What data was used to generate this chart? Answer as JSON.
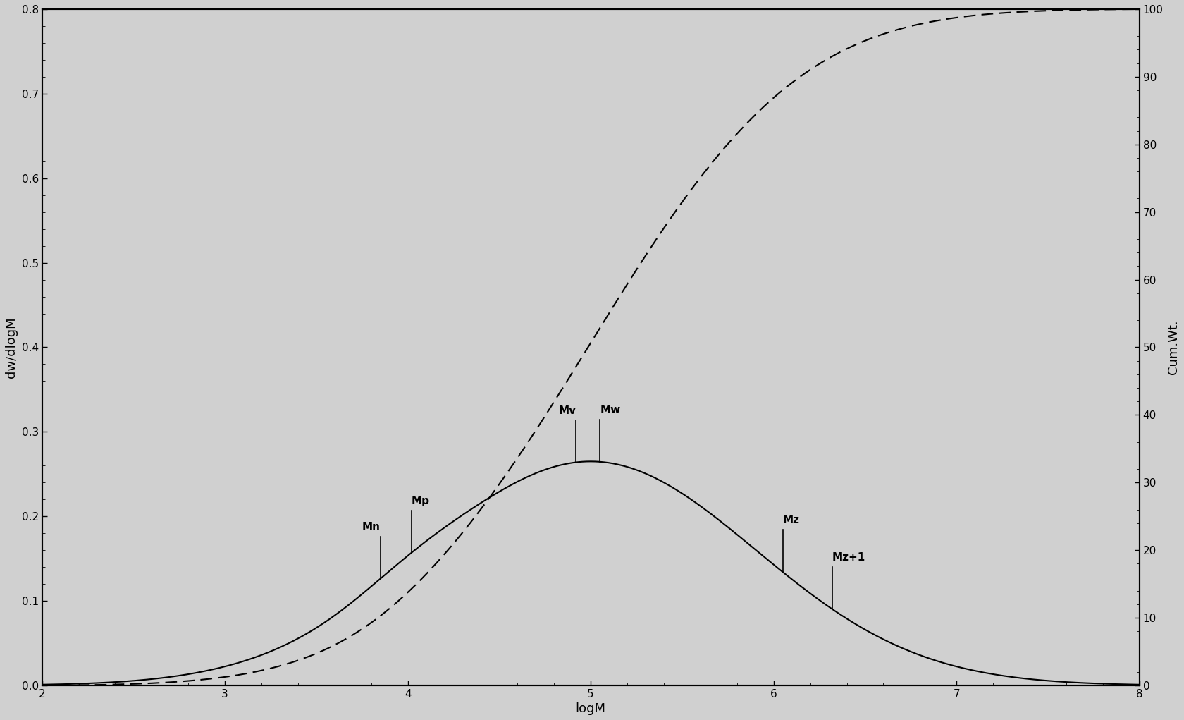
{
  "xlabel": "logM",
  "ylabel_left": "dw/dlogM",
  "ylabel_right": "Cum.Wt.",
  "xlim": [
    2,
    8
  ],
  "ylim_left": [
    0.0,
    0.8
  ],
  "ylim_right": [
    0,
    100
  ],
  "yticks_left": [
    0.0,
    0.1,
    0.2,
    0.3,
    0.4,
    0.5,
    0.6,
    0.7,
    0.8
  ],
  "yticks_right": [
    0,
    10,
    20,
    30,
    40,
    50,
    60,
    70,
    80,
    90,
    100
  ],
  "xticks": [
    2,
    3,
    4,
    5,
    6,
    7,
    8
  ],
  "annotations": [
    {
      "label": "Mn",
      "x": 3.85,
      "ha": "right"
    },
    {
      "label": "Mp",
      "x": 4.02,
      "ha": "left"
    },
    {
      "label": "Mv",
      "x": 4.92,
      "ha": "right"
    },
    {
      "label": "Mw",
      "x": 5.05,
      "ha": "left"
    },
    {
      "label": "Mz",
      "x": 6.05,
      "ha": "left"
    },
    {
      "label": "Mz+1",
      "x": 6.32,
      "ha": "left"
    }
  ],
  "background_color": "#d0d0d0",
  "line_color": "#000000",
  "bell_mu": 5.0,
  "bell_sig": 0.9,
  "bell_peak": 0.265,
  "shoulder_mu": 4.0,
  "shoulder_sig": 0.28,
  "shoulder_amp": 0.04
}
